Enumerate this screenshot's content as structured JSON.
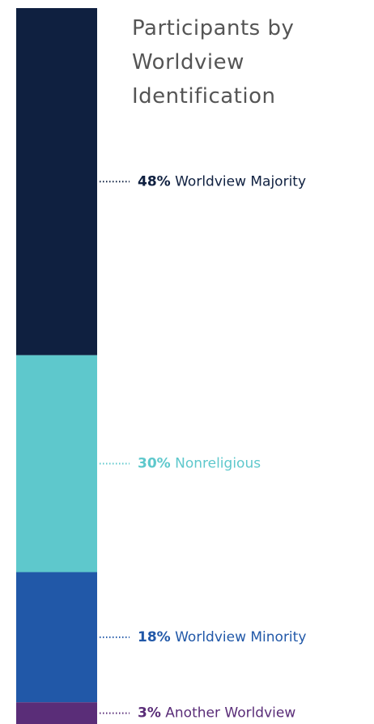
{
  "chart_data": {
    "type": "bar",
    "stacked": true,
    "title": "Participants by Worldview Identification",
    "series": [
      {
        "name": "Worldview Majority",
        "color": "#0f2040",
        "values": [
          48
        ],
        "value_labels": [
          "48%"
        ]
      },
      {
        "name": "Nonreligious",
        "color": "#5ec8cc",
        "values": [
          30
        ],
        "value_labels": [
          "30%"
        ]
      },
      {
        "name": "Worldview Minority",
        "color": "#2158a8",
        "values": [
          18
        ],
        "value_labels": [
          "18%"
        ]
      },
      {
        "name": "Another Worldview",
        "color": "#5a2d78",
        "values": [
          3
        ],
        "value_labels": [
          "3%"
        ]
      }
    ]
  }
}
